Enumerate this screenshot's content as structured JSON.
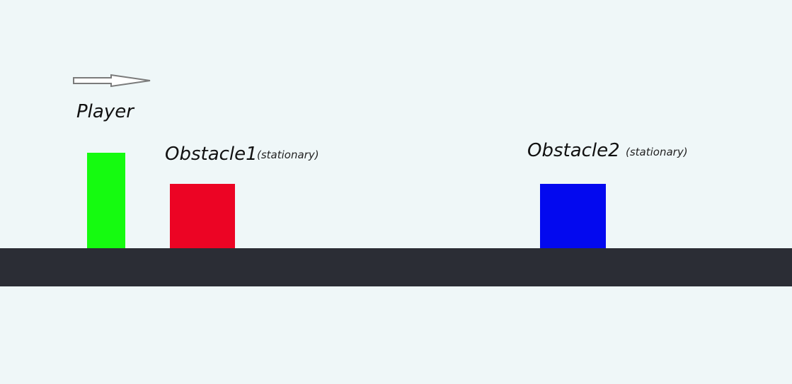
{
  "colors": {
    "background": "#eff7f8",
    "player": "#15fb10",
    "obstacle1": "#ec0424",
    "obstacle2": "#0309ef",
    "ground": "#2b2d35",
    "arrow_stroke": "#7b7b7b",
    "arrow_fill": "#ffffff"
  },
  "icons": {
    "direction": "right-arrow-icon"
  },
  "player": {
    "label": "Player"
  },
  "obstacle1": {
    "label": "Obstacle1",
    "note": "(stationary)"
  },
  "obstacle2": {
    "label": "Obstacle2",
    "note": "(stationary)"
  }
}
